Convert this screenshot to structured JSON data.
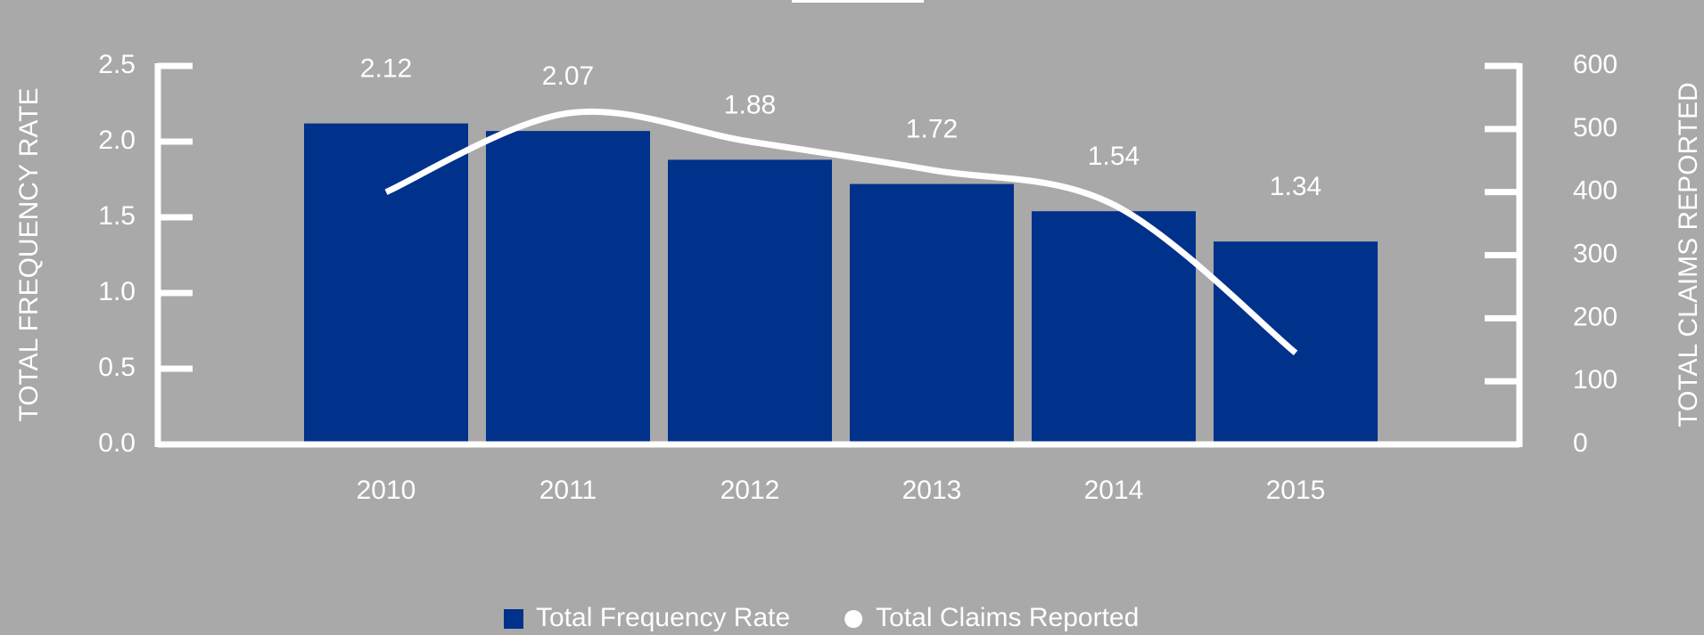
{
  "chart_data": {
    "type": "bar",
    "categories": [
      "2010",
      "2011",
      "2012",
      "2013",
      "2014",
      "2015"
    ],
    "series": [
      {
        "name": "Total Frequency Rate",
        "type": "bar",
        "color": "#00318b",
        "values": [
          2.12,
          2.07,
          1.88,
          1.72,
          1.54,
          1.34
        ],
        "value_labels": [
          "2.12",
          "2.07",
          "1.88",
          "1.72",
          "1.54",
          "1.34"
        ]
      },
      {
        "name": "Total Claims Reported",
        "type": "line",
        "axis": "y2",
        "color": "#ffffff",
        "values": [
          400,
          525,
          480,
          435,
          380,
          145
        ]
      }
    ],
    "ylabel": "TOTAL FREQUENCY RATE",
    "y2label": "TOTAL CLAIMS REPORTED",
    "ylim": [
      0,
      2.5
    ],
    "yticks": [
      {
        "value": 0,
        "label": "0.0"
      },
      0.5,
      {
        "value": 1,
        "label": "1.0"
      },
      1.5,
      {
        "value": 2,
        "label": "2.0"
      },
      2.5
    ],
    "y2lim": [
      0,
      600
    ],
    "y2ticks": [
      0,
      100,
      200,
      300,
      400,
      500,
      600
    ],
    "legend": "bottom"
  }
}
